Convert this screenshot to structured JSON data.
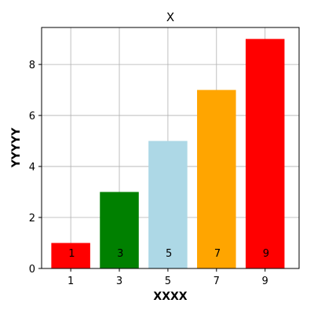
{
  "chart_data": {
    "type": "bar",
    "title": "X",
    "xlabel": "XXXX",
    "ylabel": "YYYYY",
    "x": [
      1,
      3,
      5,
      7,
      9
    ],
    "values": [
      1,
      3,
      5,
      7,
      9
    ],
    "bar_labels": [
      "1",
      "3",
      "5",
      "7",
      "9"
    ],
    "colors": [
      "#ff0000",
      "#008000",
      "#add8e6",
      "#ffa500",
      "#ff0000"
    ],
    "xlim": [
      -0.2,
      10.4
    ],
    "ylim": [
      0,
      9.45
    ],
    "x_ticks": [
      1,
      3,
      5,
      7,
      9
    ],
    "y_ticks": [
      0,
      2,
      4,
      6,
      8
    ],
    "grid": true
  }
}
